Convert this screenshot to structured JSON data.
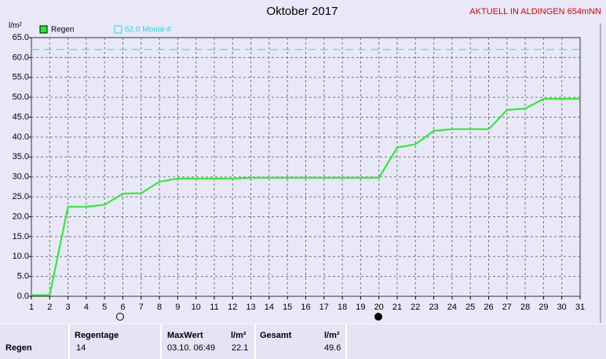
{
  "chart_data": {
    "type": "line",
    "title": "Oktober 2017",
    "subtitle": "AKTUELL IN ALDINGEN 654mNN",
    "y_label": "l/m²",
    "x": [
      1,
      2,
      3,
      4,
      5,
      6,
      7,
      8,
      9,
      10,
      11,
      12,
      13,
      14,
      15,
      16,
      17,
      18,
      19,
      20,
      21,
      22,
      23,
      24,
      25,
      26,
      27,
      28,
      29,
      30,
      31
    ],
    "series": [
      {
        "name": "Regen",
        "color": "#22ee22",
        "values": [
          0.3,
          0.3,
          22.5,
          22.5,
          23,
          25.8,
          25.9,
          28.8,
          29.6,
          29.6,
          29.6,
          29.6,
          29.8,
          29.8,
          29.8,
          29.8,
          29.8,
          29.8,
          29.8,
          29.8,
          37.4,
          38.2,
          41.6,
          42,
          42,
          42,
          46.8,
          47.2,
          49.6,
          49.6,
          49.6
        ]
      }
    ],
    "reference": {
      "value": 62.0,
      "label": "62.0 Monat-#",
      "color": "#22dddd"
    },
    "xlim": [
      1,
      31
    ],
    "xticks": [
      1,
      2,
      3,
      4,
      5,
      6,
      7,
      8,
      9,
      10,
      11,
      12,
      13,
      14,
      15,
      16,
      17,
      18,
      19,
      20,
      21,
      22,
      23,
      24,
      25,
      26,
      27,
      28,
      29,
      30,
      31
    ],
    "ylim": [
      0,
      65
    ],
    "yticks": [
      {
        "value": 0,
        "label": "0.0"
      },
      {
        "value": 5,
        "label": "5.0"
      },
      {
        "value": 10,
        "label": "10.0"
      },
      {
        "value": 15,
        "label": "15.0"
      },
      {
        "value": 20,
        "label": "20.0"
      },
      {
        "value": 25,
        "label": "25.0"
      },
      {
        "value": 30,
        "label": "30.0"
      },
      {
        "value": 35,
        "label": "35.0"
      },
      {
        "value": 40,
        "label": "40.0"
      },
      {
        "value": 45,
        "label": "45.0"
      },
      {
        "value": 50,
        "label": "50.0"
      },
      {
        "value": 55,
        "label": "55.0"
      },
      {
        "value": 60,
        "label": "60.0"
      },
      {
        "value": 65,
        "label": "65.0"
      }
    ],
    "grid": true
  },
  "table": {
    "headers": [
      "Regentage",
      "MaxWert",
      "l/m²",
      "Gesamt",
      "l/m²"
    ],
    "row_label": "Regen",
    "values": [
      14,
      "03.10. 06:49",
      22.1,
      49.6
    ]
  }
}
